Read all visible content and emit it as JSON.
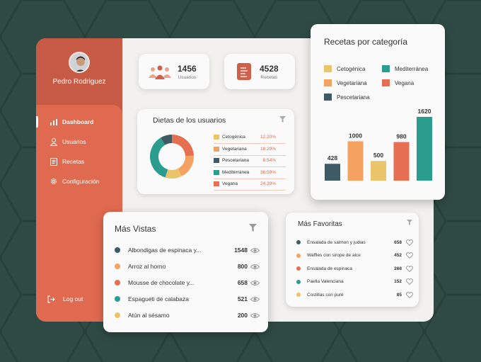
{
  "user": {
    "name": "Pedro Rodriguez"
  },
  "nav": {
    "items": [
      {
        "label": "Dashboard",
        "icon": "bar-chart-icon"
      },
      {
        "label": "Usuarios",
        "icon": "user-icon"
      },
      {
        "label": "Recetas",
        "icon": "document-icon"
      },
      {
        "label": "Configuración",
        "icon": "gear-icon"
      }
    ],
    "active": "Dashboard",
    "logout": "Log out"
  },
  "stats": {
    "users": {
      "value": "1456",
      "label": "Usuarios"
    },
    "recipes": {
      "value": "4528",
      "label": "Recetas"
    }
  },
  "diets": {
    "title": "Dietas de los usuarios",
    "items": [
      {
        "name": "Cetogénica",
        "pct": "12.20%",
        "value": 12.2,
        "color": "#e9c46a"
      },
      {
        "name": "Vegetariana",
        "pct": "18.29%",
        "value": 18.29,
        "color": "#f4a261"
      },
      {
        "name": "Pescetariana",
        "pct": "8.54%",
        "value": 8.54,
        "color": "#3d5a65"
      },
      {
        "name": "Mediterránea",
        "pct": "36.59%",
        "value": 36.59,
        "color": "#2a9d8f"
      },
      {
        "name": "Vegana",
        "pct": "24.39%",
        "value": 24.39,
        "color": "#e76f51"
      }
    ]
  },
  "categories": {
    "title": "Recetas por categoría",
    "legend": [
      {
        "name": "Cetogénica",
        "color": "#e9c46a"
      },
      {
        "name": "Mediterránea",
        "color": "#2a9d8f"
      },
      {
        "name": "Vegetariana",
        "color": "#f4a261"
      },
      {
        "name": "Vegana",
        "color": "#e76f51"
      },
      {
        "name": "Pescetariana",
        "color": "#3d5a65"
      }
    ]
  },
  "chart_data": {
    "type": "bar",
    "categories": [
      "Pescetariana",
      "Vegetariana",
      "Cetogénica",
      "Vegana",
      "Mediterránea"
    ],
    "values": [
      428,
      1000,
      500,
      980,
      1620
    ],
    "colors": [
      "#3d5a65",
      "#f4a261",
      "#e9c46a",
      "#e76f51",
      "#2a9d8f"
    ],
    "title": "Recetas por categoría",
    "xlabel": "",
    "ylabel": "",
    "ylim": [
      0,
      1620
    ]
  },
  "most_viewed": {
    "title": "Más Vistas",
    "items": [
      {
        "name": "Albondigas de espinaca y...",
        "count": "1548",
        "color": "#3d5a65"
      },
      {
        "name": "Arroz al horno",
        "count": "800",
        "color": "#f4a261"
      },
      {
        "name": "Mousse de chocolate y...",
        "count": "658",
        "color": "#e76f51"
      },
      {
        "name": "Espagueti de calabaza",
        "count": "521",
        "color": "#2a9d8f"
      },
      {
        "name": "Atún al sésamo",
        "count": "200",
        "color": "#e9c46a"
      }
    ]
  },
  "favorites": {
    "title": "Más Favoritas",
    "items": [
      {
        "name": "Ensalada de salmon y judias",
        "count": "658",
        "color": "#3d5a65"
      },
      {
        "name": "Waffles con sirope de alce",
        "count": "452",
        "color": "#f4a261"
      },
      {
        "name": "Ensalada de espinaca",
        "count": "268",
        "color": "#e76f51"
      },
      {
        "name": "Paella Valenciana",
        "count": "152",
        "color": "#2a9d8f"
      },
      {
        "name": "Costillas con puré",
        "count": "85",
        "color": "#e9c46a"
      }
    ]
  }
}
